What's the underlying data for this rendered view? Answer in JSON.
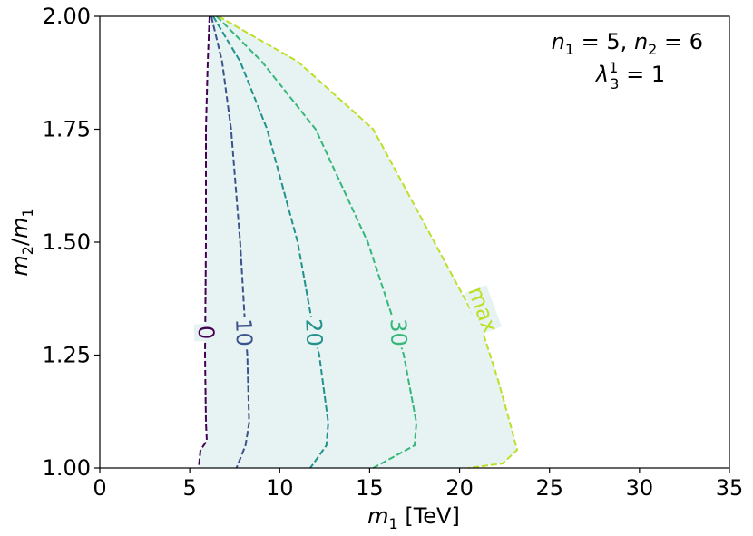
{
  "chart_data": {
    "type": "line",
    "title": "",
    "xlabel": "m_1 [TeV]",
    "ylabel": "m_2/m_1",
    "xlim": [
      0,
      35
    ],
    "ylim": [
      1.0,
      2.0
    ],
    "xticks": [
      0,
      5,
      10,
      15,
      20,
      25,
      30,
      35
    ],
    "yticks": [
      1.0,
      1.25,
      1.5,
      1.75,
      2.0
    ],
    "xtick_labels": [
      "0",
      "5",
      "10",
      "15",
      "20",
      "25",
      "30",
      "35"
    ],
    "ytick_labels": [
      "1.00",
      "1.25",
      "1.50",
      "1.75",
      "2.00"
    ],
    "grid": false,
    "annotation": {
      "line1": "n_1 = 5, n_2 = 6",
      "line2": "λ_3^1 = 1"
    },
    "fill_region_color": "#e6f3f2",
    "series": [
      {
        "name": "0",
        "color": "#440154",
        "label_at": [
          5.9,
          1.3
        ],
        "points": [
          [
            6.1,
            2.0
          ],
          [
            6.0,
            1.9
          ],
          [
            5.9,
            1.75
          ],
          [
            5.9,
            1.5
          ],
          [
            5.85,
            1.25
          ],
          [
            5.9,
            1.1
          ],
          [
            5.95,
            1.06
          ],
          [
            5.6,
            1.04
          ],
          [
            5.5,
            1.0
          ]
        ]
      },
      {
        "name": "10",
        "color": "#3b528b",
        "label_at": [
          8.0,
          1.3
        ],
        "points": [
          [
            6.2,
            2.0
          ],
          [
            6.8,
            1.9
          ],
          [
            7.3,
            1.75
          ],
          [
            7.8,
            1.5
          ],
          [
            8.1,
            1.3
          ],
          [
            8.2,
            1.25
          ],
          [
            8.3,
            1.1
          ],
          [
            8.1,
            1.05
          ],
          [
            7.6,
            1.0
          ]
        ]
      },
      {
        "name": "20",
        "color": "#21918c",
        "label_at": [
          11.9,
          1.3
        ],
        "points": [
          [
            6.3,
            2.0
          ],
          [
            7.8,
            1.9
          ],
          [
            9.3,
            1.75
          ],
          [
            11.0,
            1.5
          ],
          [
            11.9,
            1.3
          ],
          [
            12.2,
            1.25
          ],
          [
            12.7,
            1.1
          ],
          [
            12.6,
            1.05
          ],
          [
            11.7,
            1.0
          ]
        ]
      },
      {
        "name": "30",
        "color": "#35b779",
        "label_at": [
          16.6,
          1.3
        ],
        "points": [
          [
            6.5,
            2.0
          ],
          [
            9.0,
            1.9
          ],
          [
            12.0,
            1.75
          ],
          [
            14.9,
            1.5
          ],
          [
            16.3,
            1.33
          ],
          [
            16.9,
            1.25
          ],
          [
            17.6,
            1.1
          ],
          [
            17.5,
            1.05
          ],
          [
            15.2,
            1.0
          ]
        ]
      },
      {
        "name": "max",
        "color": "#bddf26",
        "label_at": [
          21.3,
          1.35
        ],
        "points": [
          [
            6.6,
            2.0
          ],
          [
            11.0,
            1.9
          ],
          [
            15.2,
            1.75
          ],
          [
            18.6,
            1.5
          ],
          [
            21.3,
            1.3
          ],
          [
            22.1,
            1.2
          ],
          [
            22.8,
            1.1
          ],
          [
            23.2,
            1.04
          ],
          [
            22.4,
            1.01
          ],
          [
            20.5,
            1.0
          ]
        ]
      }
    ]
  }
}
